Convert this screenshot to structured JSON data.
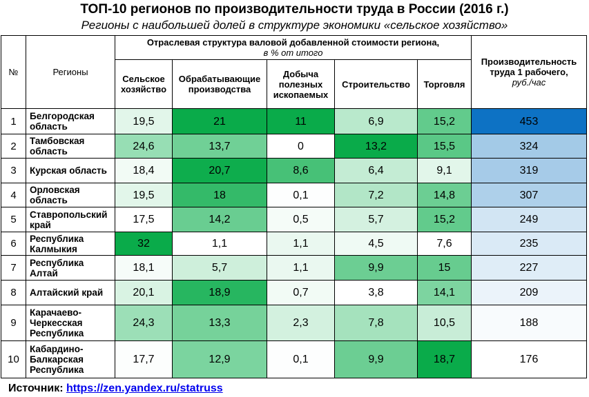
{
  "title": "ТОП-10 регионов по производительности труда в России (2016 г.)",
  "subtitle": "Регионы с наибольшей долей в структуре экономики «сельское хозяйство»",
  "header": {
    "num": "№",
    "regions": "Регионы",
    "group": "Отраслевая структура валовой добавленной стоимости региона,",
    "group_unit": "в % от итого",
    "cols": [
      "Сельское хозяйство",
      "Обрабатывающие производства",
      "Добыча полезных ископаемых",
      "Строительство",
      "Торговля"
    ],
    "productivity": "Производительность труда 1 рабочего,",
    "productivity_unit": "руб./час"
  },
  "source": {
    "label": "Источник:",
    "link": "https://zen.yandex.ru/statruss"
  },
  "chart_data": {
    "type": "table",
    "columns": [
      "№",
      "Регионы",
      "Сельское хозяйство",
      "Обрабатывающие производства",
      "Добыча полезных ископаемых",
      "Строительство",
      "Торговля",
      "Производительность труда 1 рабочего, руб./час"
    ],
    "rows": [
      {
        "n": "1",
        "region": "Белгородская область",
        "values": [
          "19,5",
          "21",
          "11",
          "6,9",
          "15,2"
        ],
        "productivity": "453"
      },
      {
        "n": "2",
        "region": "Тамбовская область",
        "values": [
          "24,6",
          "13,7",
          "0",
          "13,2",
          "15,5"
        ],
        "productivity": "324"
      },
      {
        "n": "3",
        "region": "Курская область",
        "values": [
          "18,4",
          "20,7",
          "8,6",
          "6,4",
          "9,1"
        ],
        "productivity": "319"
      },
      {
        "n": "4",
        "region": "Орловская область",
        "values": [
          "19,5",
          "18",
          "0,1",
          "7,2",
          "14,8"
        ],
        "productivity": "307"
      },
      {
        "n": "5",
        "region": "Ставропольский край",
        "values": [
          "17,5",
          "14,2",
          "0,5",
          "5,7",
          "15,2"
        ],
        "productivity": "249"
      },
      {
        "n": "6",
        "region": "Республика Калмыкия",
        "values": [
          "32",
          "1,1",
          "1,1",
          "4,5",
          "7,6"
        ],
        "productivity": "235"
      },
      {
        "n": "7",
        "region": "Республика Алтай",
        "values": [
          "18,1",
          "5,7",
          "1,1",
          "9,9",
          "15"
        ],
        "productivity": "227"
      },
      {
        "n": "8",
        "region": "Алтайский край",
        "values": [
          "20,1",
          "18,9",
          "0,7",
          "3,8",
          "14,1"
        ],
        "productivity": "209"
      },
      {
        "n": "9",
        "region": "Карачаево-Черкесская Республика",
        "values": [
          "24,3",
          "13,3",
          "2,3",
          "7,8",
          "10,5"
        ],
        "productivity": "188"
      },
      {
        "n": "10",
        "region": "Кабардино-Балкарская Республика",
        "values": [
          "17,7",
          "12,9",
          "0,1",
          "9,9",
          "18,7"
        ],
        "productivity": "176"
      }
    ],
    "colors": {
      "green_scale": [
        "#ffffff",
        "#c6efd6",
        "#9fe1b9",
        "#79d39c",
        "#54c57f",
        "#2eb863",
        "#0aab4a"
      ],
      "blue_scale": [
        "#ffffff",
        "#eaf2fa",
        "#d4e6f4",
        "#bcd7ee",
        "#9cc6e6",
        "#7cb4de",
        "#0d72c4"
      ]
    }
  }
}
